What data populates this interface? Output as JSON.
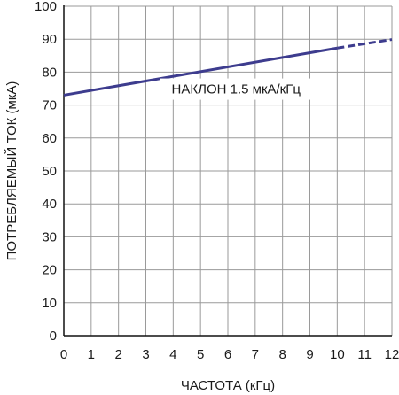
{
  "chart_data": {
    "type": "line",
    "xlabel": "ЧАСТОТА (кГц)",
    "ylabel": "ПОТРЕБЛЯЕМЫЙ ТОК (мкА)",
    "xlim": [
      0,
      12
    ],
    "ylim": [
      0,
      100
    ],
    "x_ticks": [
      "0",
      "1",
      "2",
      "3",
      "4",
      "5",
      "6",
      "7",
      "8",
      "9",
      "10",
      "11",
      "12"
    ],
    "y_ticks": [
      "0",
      "10",
      "20",
      "30",
      "40",
      "50",
      "60",
      "70",
      "80",
      "90",
      "100"
    ],
    "grid": true,
    "series": [
      {
        "style": "solid",
        "x": [
          0,
          10
        ],
        "y": [
          73,
          87.3
        ]
      },
      {
        "style": "dashed",
        "x": [
          10,
          12
        ],
        "y": [
          87.3,
          89.9
        ]
      }
    ],
    "annotations": [
      {
        "text": "НАКЛОН 1.5 мкА/кГц",
        "x": 6.3,
        "y": 73.5
      }
    ],
    "colors": {
      "line": "#3d3c8e",
      "grid": "#9a9a9a",
      "axis": "#111111"
    }
  }
}
